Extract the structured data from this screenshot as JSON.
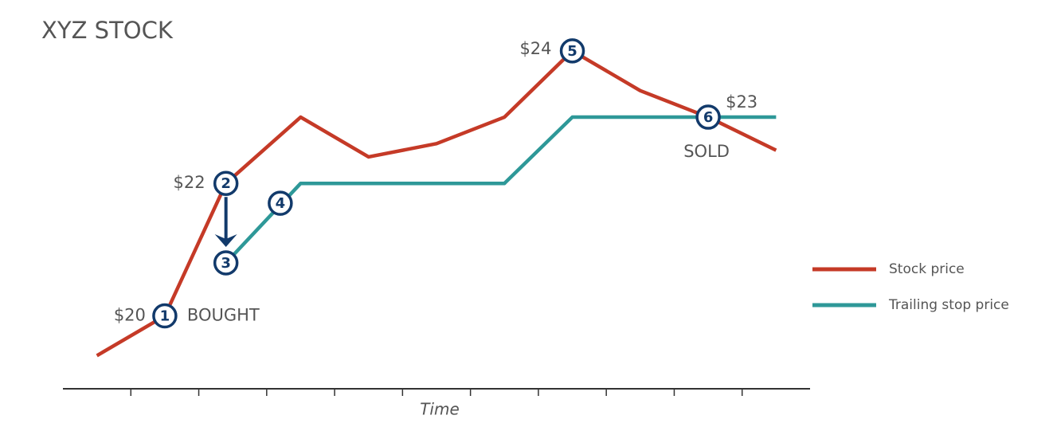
{
  "chart_data": {
    "type": "line",
    "title": "XYZ STOCK",
    "xlabel": "Time",
    "xlim": [
      0,
      11
    ],
    "xticks": [
      1,
      2,
      3,
      4,
      5,
      6,
      7,
      8,
      9,
      10
    ],
    "ylim": [
      18.9,
      24.6
    ],
    "series": [
      {
        "name": "Stock price",
        "color": "#c53a27",
        "x": [
          0.5,
          1.5,
          2.4,
          3.5,
          4.5,
          5.5,
          6.5,
          7.5,
          8.5,
          9.5,
          10.5
        ],
        "values": [
          19.4,
          20,
          22,
          23,
          22.4,
          22.6,
          23,
          24,
          23.4,
          23,
          22.5
        ]
      },
      {
        "name": "Trailing stop price",
        "color": "#2e9898",
        "x": [
          2.4,
          3.5,
          6.5,
          7.5,
          10.5
        ],
        "values": [
          20.8,
          22,
          22,
          23,
          23
        ]
      }
    ],
    "annotations": [
      {
        "label": "1",
        "x": 1.5,
        "y": 20,
        "text": "$20",
        "note": "BOUGHT"
      },
      {
        "label": "2",
        "x": 2.4,
        "y": 22,
        "text": "$22"
      },
      {
        "label": "3",
        "x": 2.4,
        "y": 20.8
      },
      {
        "label": "4",
        "x": 3.2,
        "y": 21.7
      },
      {
        "label": "5",
        "x": 7.5,
        "y": 24,
        "text": "$24"
      },
      {
        "label": "6",
        "x": 9.5,
        "y": 23,
        "text": "$23",
        "note": "SOLD"
      }
    ]
  }
}
